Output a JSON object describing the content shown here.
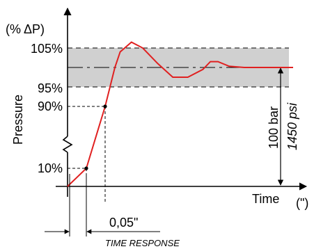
{
  "chart_data": {
    "type": "line",
    "title": "",
    "unit_label": "(% ΔP)",
    "ylabel": "Pressure",
    "xlabel": "Time",
    "x_unit": "(\")",
    "y_ticks": [
      "105%",
      "95%",
      "90%",
      "10%"
    ],
    "y_tick_values": [
      105,
      95,
      90,
      10
    ],
    "tolerance_band": [
      95,
      105
    ],
    "setpoint": 100,
    "range_label": "100 bar",
    "range_label_alt": "1450 psi",
    "response_time": "0,05\"",
    "caption": "TIME RESPONSE",
    "colors": {
      "curve": "#e02020",
      "band": "#d0d0d0",
      "axis": "#000000"
    },
    "series": [
      {
        "values": [
          [
            0.0,
            0
          ],
          [
            0.025,
            10
          ],
          [
            0.05,
            90
          ],
          [
            0.063,
            100
          ],
          [
            0.07,
            104
          ],
          [
            0.085,
            106.5
          ],
          [
            0.1,
            105
          ],
          [
            0.12,
            101
          ],
          [
            0.14,
            97.5
          ],
          [
            0.16,
            97.5
          ],
          [
            0.18,
            99.5
          ],
          [
            0.19,
            101.5
          ],
          [
            0.2,
            101.5
          ],
          [
            0.215,
            100.3
          ],
          [
            0.235,
            100
          ],
          [
            0.3,
            100
          ]
        ]
      }
    ]
  }
}
